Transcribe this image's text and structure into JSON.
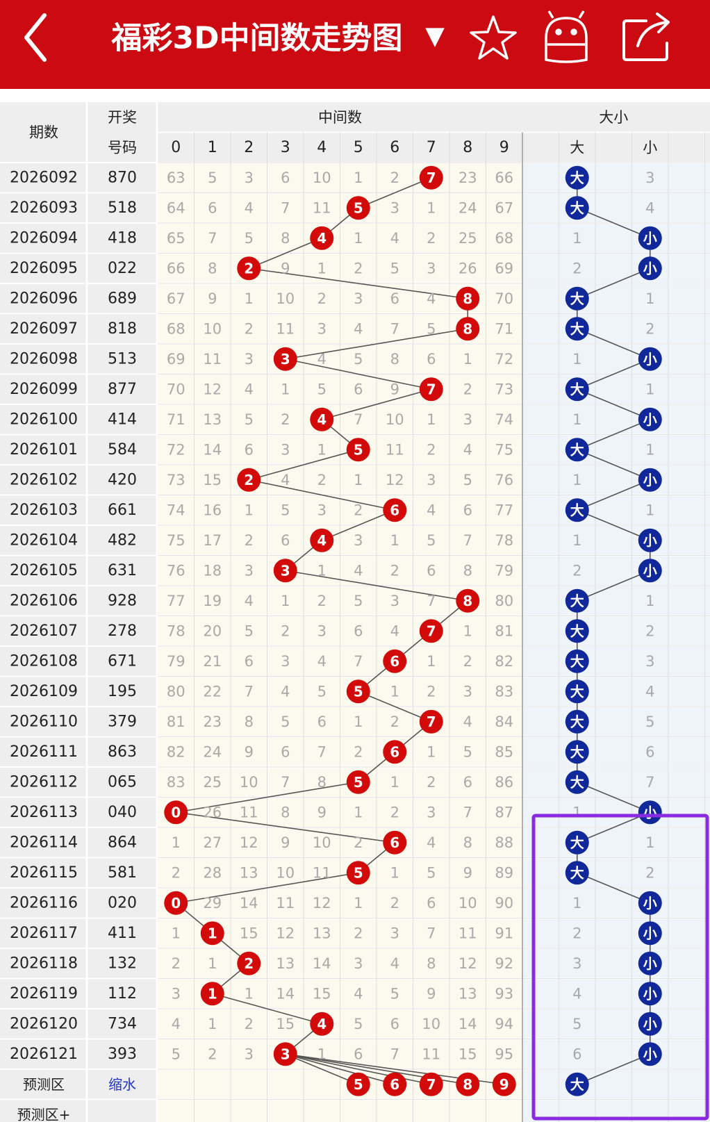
{
  "header": {
    "title": "福彩3D中间数走势图",
    "dropdown": "▼"
  },
  "table": {
    "headers": {
      "period": "期数",
      "number": [
        "开奖",
        "号码"
      ],
      "middle": "中间数",
      "digits": [
        "0",
        "1",
        "2",
        "3",
        "4",
        "5",
        "6",
        "7",
        "8",
        "9"
      ],
      "size": "大小",
      "size_cols": [
        "大",
        "小"
      ]
    },
    "rows": [
      {
        "period": "2026092",
        "number": "870",
        "cells": [
          "63",
          "5",
          "3",
          "6",
          "10",
          "1",
          "2",
          "7",
          "23",
          "66"
        ],
        "hit": 7,
        "bs": [
          "大",
          "3"
        ],
        "bs_hit": 0
      },
      {
        "period": "2026093",
        "number": "518",
        "cells": [
          "64",
          "6",
          "4",
          "7",
          "11",
          "5",
          "3",
          "1",
          "24",
          "67"
        ],
        "hit": 5,
        "bs": [
          "大",
          "4"
        ],
        "bs_hit": 0
      },
      {
        "period": "2026094",
        "number": "418",
        "cells": [
          "65",
          "7",
          "5",
          "8",
          "4",
          "1",
          "4",
          "2",
          "25",
          "68"
        ],
        "hit": 4,
        "bs": [
          "1",
          "小"
        ],
        "bs_hit": 1
      },
      {
        "period": "2026095",
        "number": "022",
        "cells": [
          "66",
          "8",
          "2",
          "9",
          "1",
          "2",
          "5",
          "3",
          "26",
          "69"
        ],
        "hit": 2,
        "bs": [
          "2",
          "小"
        ],
        "bs_hit": 1
      },
      {
        "period": "2026096",
        "number": "689",
        "cells": [
          "67",
          "9",
          "1",
          "10",
          "2",
          "3",
          "6",
          "4",
          "8",
          "70"
        ],
        "hit": 8,
        "bs": [
          "大",
          "1"
        ],
        "bs_hit": 0
      },
      {
        "period": "2026097",
        "number": "818",
        "cells": [
          "68",
          "10",
          "2",
          "11",
          "3",
          "4",
          "7",
          "5",
          "8",
          "71"
        ],
        "hit": 8,
        "bs": [
          "大",
          "2"
        ],
        "bs_hit": 0
      },
      {
        "period": "2026098",
        "number": "513",
        "cells": [
          "69",
          "11",
          "3",
          "3",
          "4",
          "5",
          "8",
          "6",
          "1",
          "72"
        ],
        "hit": 3,
        "bs": [
          "1",
          "小"
        ],
        "bs_hit": 1
      },
      {
        "period": "2026099",
        "number": "877",
        "cells": [
          "70",
          "12",
          "4",
          "1",
          "5",
          "6",
          "9",
          "7",
          "2",
          "73"
        ],
        "hit": 7,
        "bs": [
          "大",
          "1"
        ],
        "bs_hit": 0
      },
      {
        "period": "2026100",
        "number": "414",
        "cells": [
          "71",
          "13",
          "5",
          "2",
          "4",
          "7",
          "10",
          "1",
          "3",
          "74"
        ],
        "hit": 4,
        "bs": [
          "1",
          "小"
        ],
        "bs_hit": 1
      },
      {
        "period": "2026101",
        "number": "584",
        "cells": [
          "72",
          "14",
          "6",
          "3",
          "1",
          "5",
          "11",
          "2",
          "4",
          "75"
        ],
        "hit": 5,
        "bs": [
          "大",
          "1"
        ],
        "bs_hit": 0
      },
      {
        "period": "2026102",
        "number": "420",
        "cells": [
          "73",
          "15",
          "2",
          "4",
          "2",
          "1",
          "12",
          "3",
          "5",
          "76"
        ],
        "hit": 2,
        "bs": [
          "1",
          "小"
        ],
        "bs_hit": 1
      },
      {
        "period": "2026103",
        "number": "661",
        "cells": [
          "74",
          "16",
          "1",
          "5",
          "3",
          "2",
          "6",
          "4",
          "6",
          "77"
        ],
        "hit": 6,
        "bs": [
          "大",
          "1"
        ],
        "bs_hit": 0
      },
      {
        "period": "2026104",
        "number": "482",
        "cells": [
          "75",
          "17",
          "2",
          "6",
          "4",
          "3",
          "1",
          "5",
          "7",
          "78"
        ],
        "hit": 4,
        "bs": [
          "1",
          "小"
        ],
        "bs_hit": 1
      },
      {
        "period": "2026105",
        "number": "631",
        "cells": [
          "76",
          "18",
          "3",
          "3",
          "1",
          "4",
          "2",
          "6",
          "8",
          "79"
        ],
        "hit": 3,
        "bs": [
          "2",
          "小"
        ],
        "bs_hit": 1
      },
      {
        "period": "2026106",
        "number": "928",
        "cells": [
          "77",
          "19",
          "4",
          "1",
          "2",
          "5",
          "3",
          "7",
          "8",
          "80"
        ],
        "hit": 8,
        "bs": [
          "大",
          "1"
        ],
        "bs_hit": 0
      },
      {
        "period": "2026107",
        "number": "278",
        "cells": [
          "78",
          "20",
          "5",
          "2",
          "3",
          "6",
          "4",
          "7",
          "1",
          "81"
        ],
        "hit": 7,
        "bs": [
          "大",
          "2"
        ],
        "bs_hit": 0
      },
      {
        "period": "2026108",
        "number": "671",
        "cells": [
          "79",
          "21",
          "6",
          "3",
          "4",
          "7",
          "6",
          "1",
          "2",
          "82"
        ],
        "hit": 6,
        "bs": [
          "大",
          "3"
        ],
        "bs_hit": 0
      },
      {
        "period": "2026109",
        "number": "195",
        "cells": [
          "80",
          "22",
          "7",
          "4",
          "5",
          "5",
          "1",
          "2",
          "3",
          "83"
        ],
        "hit": 5,
        "bs": [
          "大",
          "4"
        ],
        "bs_hit": 0
      },
      {
        "period": "2026110",
        "number": "379",
        "cells": [
          "81",
          "23",
          "8",
          "5",
          "6",
          "1",
          "2",
          "7",
          "4",
          "84"
        ],
        "hit": 7,
        "bs": [
          "大",
          "5"
        ],
        "bs_hit": 0
      },
      {
        "period": "2026111",
        "number": "863",
        "cells": [
          "82",
          "24",
          "9",
          "6",
          "7",
          "2",
          "6",
          "1",
          "5",
          "85"
        ],
        "hit": 6,
        "bs": [
          "大",
          "6"
        ],
        "bs_hit": 0
      },
      {
        "period": "2026112",
        "number": "065",
        "cells": [
          "83",
          "25",
          "10",
          "7",
          "8",
          "5",
          "1",
          "2",
          "6",
          "86"
        ],
        "hit": 5,
        "bs": [
          "大",
          "7"
        ],
        "bs_hit": 0
      },
      {
        "period": "2026113",
        "number": "040",
        "cells": [
          "0",
          "26",
          "11",
          "8",
          "9",
          "1",
          "2",
          "3",
          "7",
          "87"
        ],
        "hit": 0,
        "bs": [
          "1",
          "小"
        ],
        "bs_hit": 1
      },
      {
        "period": "2026114",
        "number": "864",
        "cells": [
          "1",
          "27",
          "12",
          "9",
          "10",
          "2",
          "6",
          "4",
          "8",
          "88"
        ],
        "hit": 6,
        "bs": [
          "大",
          "1"
        ],
        "bs_hit": 0
      },
      {
        "period": "2026115",
        "number": "581",
        "cells": [
          "2",
          "28",
          "13",
          "10",
          "11",
          "5",
          "1",
          "5",
          "9",
          "89"
        ],
        "hit": 5,
        "bs": [
          "大",
          "2"
        ],
        "bs_hit": 0
      },
      {
        "period": "2026116",
        "number": "020",
        "cells": [
          "0",
          "29",
          "14",
          "11",
          "12",
          "1",
          "2",
          "6",
          "10",
          "90"
        ],
        "hit": 0,
        "bs": [
          "1",
          "小"
        ],
        "bs_hit": 1
      },
      {
        "period": "2026117",
        "number": "411",
        "cells": [
          "1",
          "1",
          "15",
          "12",
          "13",
          "2",
          "3",
          "7",
          "11",
          "91"
        ],
        "hit": 1,
        "bs": [
          "2",
          "小"
        ],
        "bs_hit": 1
      },
      {
        "period": "2026118",
        "number": "132",
        "cells": [
          "2",
          "1",
          "2",
          "13",
          "14",
          "3",
          "4",
          "8",
          "12",
          "92"
        ],
        "hit": 2,
        "bs": [
          "3",
          "小"
        ],
        "bs_hit": 1
      },
      {
        "period": "2026119",
        "number": "112",
        "cells": [
          "3",
          "1",
          "1",
          "14",
          "15",
          "4",
          "5",
          "9",
          "13",
          "93"
        ],
        "hit": 1,
        "bs": [
          "4",
          "小"
        ],
        "bs_hit": 1
      },
      {
        "period": "2026120",
        "number": "734",
        "cells": [
          "4",
          "1",
          "2",
          "15",
          "4",
          "5",
          "6",
          "10",
          "14",
          "94"
        ],
        "hit": 4,
        "bs": [
          "5",
          "小"
        ],
        "bs_hit": 1
      },
      {
        "period": "2026121",
        "number": "393",
        "cells": [
          "5",
          "2",
          "3",
          "3",
          "1",
          "6",
          "7",
          "11",
          "15",
          "95"
        ],
        "hit": 3,
        "bs": [
          "6",
          "小"
        ],
        "bs_hit": 1
      }
    ],
    "prediction": {
      "label": "预测区",
      "shrink": "缩水",
      "picks": [
        "5",
        "6",
        "7",
        "8",
        "9"
      ],
      "bs": "大"
    },
    "prediction_plus": {
      "label": "预测区+"
    }
  }
}
